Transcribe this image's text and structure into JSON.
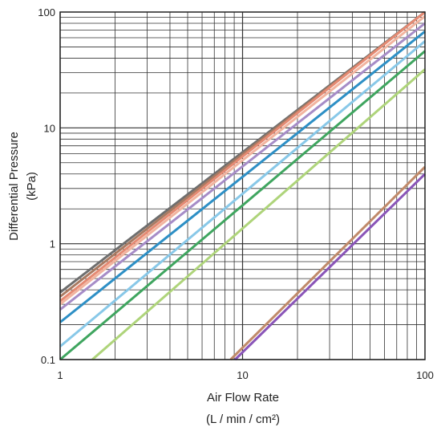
{
  "chart_data": {
    "type": "line",
    "xscale": "log",
    "yscale": "log",
    "xlim": [
      1,
      100
    ],
    "ylim": [
      0.1,
      100
    ],
    "grid": true,
    "x_ticks": [
      "1",
      "10",
      "100"
    ],
    "y_ticks": [
      "0.1",
      "1",
      "10",
      "100"
    ],
    "xlabel": "Air Flow Rate",
    "xlabel_unit": "(L / min / cm²)",
    "ylabel": "Differential Pressure",
    "ylabel_unit": "(kPa)",
    "series": [
      {
        "color": "#6e6e6e",
        "x": [
          1,
          100
        ],
        "y": [
          0.38,
          100
        ]
      },
      {
        "color": "#a87a62",
        "x": [
          1,
          100
        ],
        "y": [
          0.35,
          100
        ]
      },
      {
        "color": "#e58a73",
        "x": [
          1,
          100
        ],
        "y": [
          0.32,
          100
        ]
      },
      {
        "color": "#f2b49f",
        "x": [
          1,
          100
        ],
        "y": [
          0.3,
          92
        ]
      },
      {
        "color": "#a68cc7",
        "x": [
          1,
          100
        ],
        "y": [
          0.27,
          80
        ]
      },
      {
        "color": "#2d8fc5",
        "x": [
          1,
          100
        ],
        "y": [
          0.21,
          68
        ]
      },
      {
        "color": "#88c8e8",
        "x": [
          1,
          100
        ],
        "y": [
          0.13,
          56
        ]
      },
      {
        "color": "#3fa55f",
        "x": [
          1,
          100
        ],
        "y": [
          0.1,
          46
        ]
      },
      {
        "color": "#aed47a",
        "x": [
          1.5,
          100
        ],
        "y": [
          0.1,
          32
        ]
      },
      {
        "color": "#c08a6a",
        "x": [
          8.6,
          100
        ],
        "y": [
          0.1,
          4.6
        ]
      },
      {
        "color": "#8a55b8",
        "x": [
          9.1,
          100
        ],
        "y": [
          0.1,
          4.0
        ]
      }
    ]
  }
}
